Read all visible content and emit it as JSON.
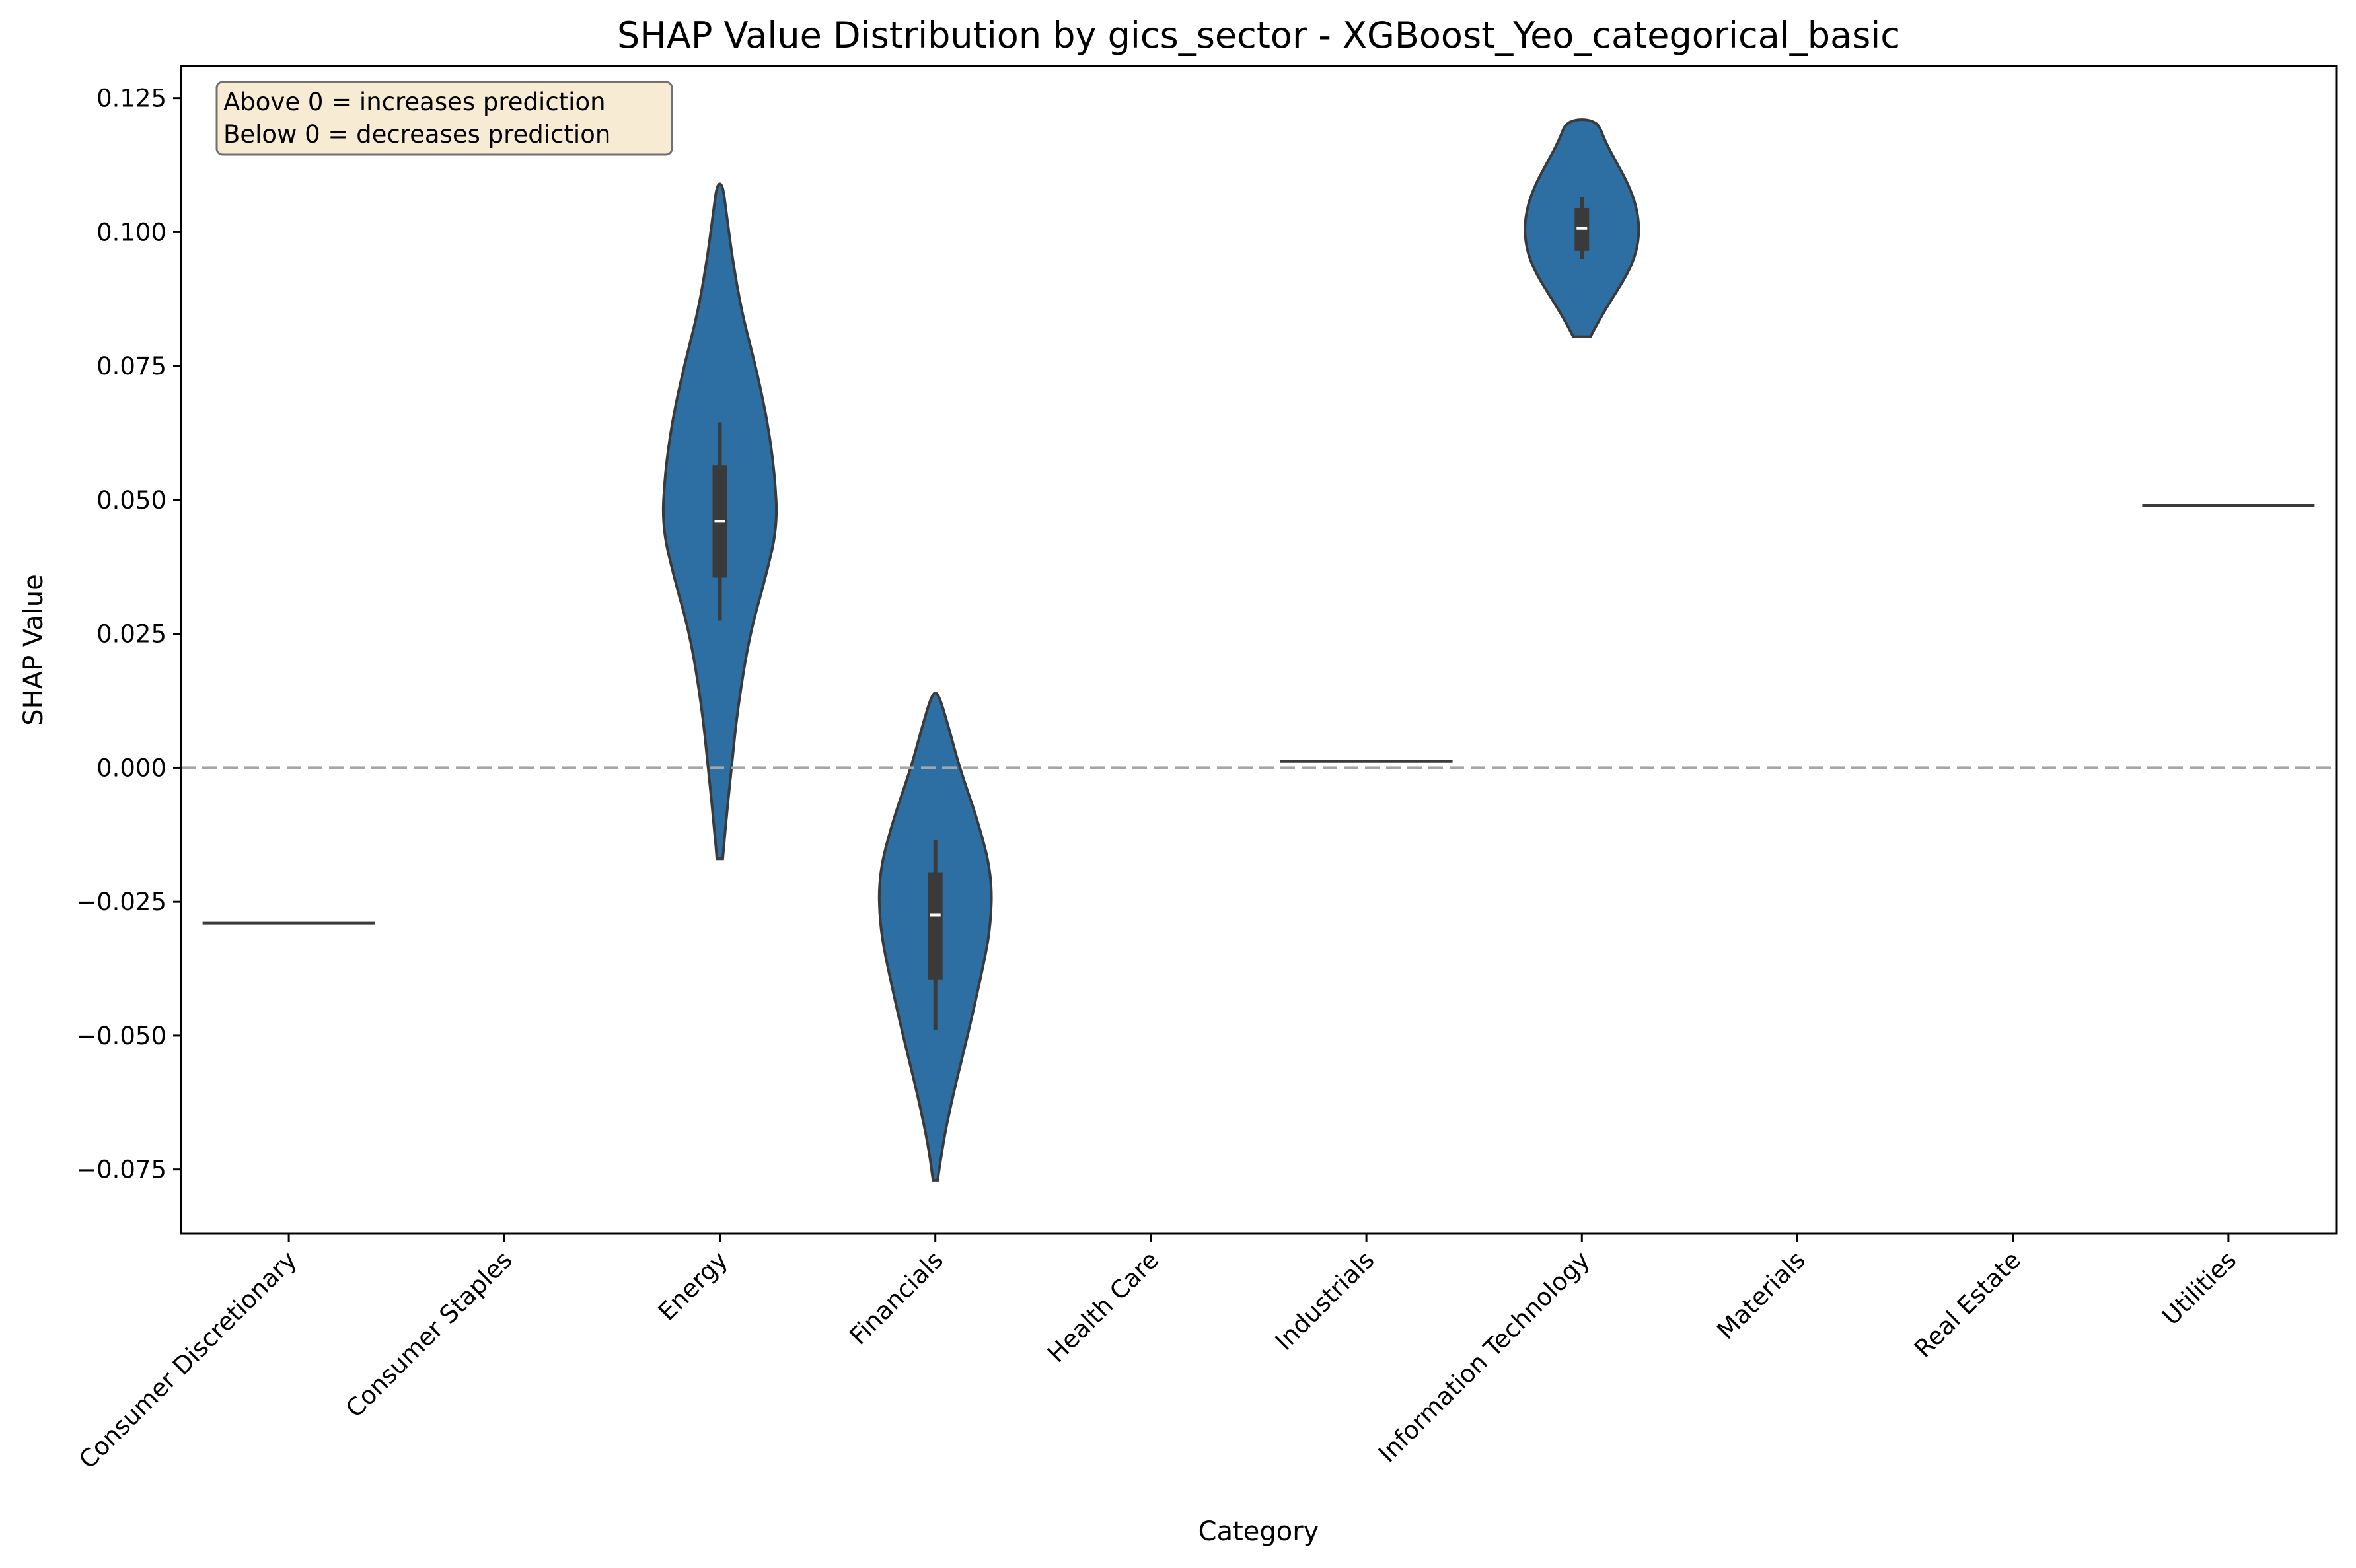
{
  "chart_data": {
    "type": "violin",
    "title": "SHAP Value Distribution by gics_sector - XGBoost_Yeo_categorical_basic",
    "xlabel": "Category",
    "ylabel": "SHAP Value",
    "ylim": [
      -0.087,
      0.131
    ],
    "y_ticks": [
      0.125,
      0.1,
      0.075,
      0.05,
      0.025,
      0.0,
      -0.025,
      -0.05,
      -0.075
    ],
    "y_tick_labels": [
      "0.125",
      "0.100",
      "0.075",
      "0.050",
      "0.025",
      "0.000",
      "−0.025",
      "−0.050",
      "−0.075"
    ],
    "categories": [
      "Consumer Discretionary",
      "Consumer Staples",
      "Energy",
      "Financials",
      "Health Care",
      "Industrials",
      "Information Technology",
      "Materials",
      "Real Estate",
      "Utilities"
    ],
    "reference_line": {
      "y": 0.0,
      "style": "dashed",
      "color": "#a6a6a6"
    },
    "annotation": {
      "lines": [
        "Above 0 = increases prediction",
        "Below 0 = decreases prediction"
      ],
      "placement": "top-left"
    },
    "violin_color": "#2e6fa3",
    "edge_color": "#3a3a3a",
    "series": [
      {
        "category": "Consumer Discretionary",
        "kind": "single",
        "value": -0.029
      },
      {
        "category": "Energy",
        "kind": "violin",
        "min": -0.017,
        "max": 0.109,
        "median": 0.046,
        "q1": 0.0355,
        "q3": 0.0565,
        "whisker_low": 0.0275,
        "whisker_high": 0.0645,
        "profile": [
          [
            -0.017,
            0.05
          ],
          [
            -0.012,
            0.09
          ],
          [
            0.0,
            0.2
          ],
          [
            0.012,
            0.32
          ],
          [
            0.025,
            0.52
          ],
          [
            0.035,
            0.78
          ],
          [
            0.045,
            1.0
          ],
          [
            0.055,
            0.95
          ],
          [
            0.065,
            0.82
          ],
          [
            0.075,
            0.62
          ],
          [
            0.085,
            0.38
          ],
          [
            0.095,
            0.22
          ],
          [
            0.103,
            0.12
          ],
          [
            0.109,
            0.05
          ]
        ]
      },
      {
        "category": "Financials",
        "kind": "violin",
        "min": -0.077,
        "max": 0.014,
        "median": -0.0275,
        "q1": -0.0395,
        "q3": -0.0195,
        "whisker_low": -0.049,
        "whisker_high": -0.0135,
        "profile": [
          [
            -0.077,
            0.04
          ],
          [
            -0.07,
            0.13
          ],
          [
            -0.06,
            0.33
          ],
          [
            -0.05,
            0.56
          ],
          [
            -0.04,
            0.77
          ],
          [
            -0.03,
            0.96
          ],
          [
            -0.02,
            0.98
          ],
          [
            -0.01,
            0.74
          ],
          [
            0.0,
            0.42
          ],
          [
            0.008,
            0.22
          ],
          [
            0.014,
            0.05
          ]
        ]
      },
      {
        "category": "Industrials",
        "kind": "single",
        "value": 0.0012
      },
      {
        "category": "Information Technology",
        "kind": "violin",
        "min": 0.0805,
        "max": 0.121,
        "median": 0.1007,
        "q1": 0.0965,
        "q3": 0.1045,
        "whisker_low": 0.095,
        "whisker_high": 0.1065,
        "profile": [
          [
            0.0805,
            0.15
          ],
          [
            0.084,
            0.32
          ],
          [
            0.088,
            0.55
          ],
          [
            0.092,
            0.78
          ],
          [
            0.096,
            0.94
          ],
          [
            0.1005,
            1.0
          ],
          [
            0.105,
            0.94
          ],
          [
            0.109,
            0.8
          ],
          [
            0.113,
            0.6
          ],
          [
            0.117,
            0.4
          ],
          [
            0.121,
            0.26
          ]
        ]
      },
      {
        "category": "Utilities",
        "kind": "single",
        "value": 0.049
      }
    ]
  }
}
